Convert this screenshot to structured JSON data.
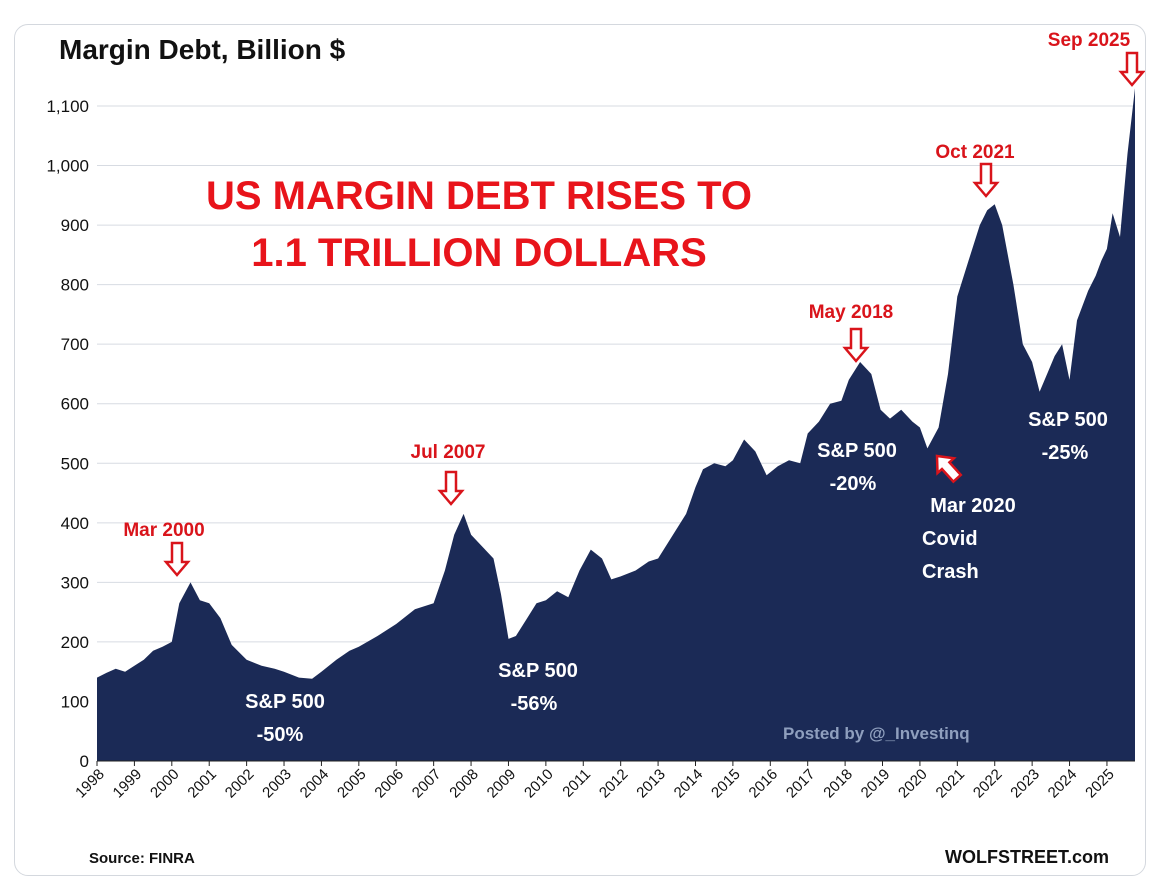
{
  "chart_data": {
    "type": "area",
    "title": "Margin Debt, Billion $",
    "headline": [
      "US MARGIN DEBT RISES TO",
      "1.1 TRILLION DOLLARS"
    ],
    "xlabel": "",
    "ylabel": "",
    "ylim": [
      0,
      1160
    ],
    "xlim": [
      1998,
      2025.75
    ],
    "yticks": [
      0,
      100,
      200,
      300,
      400,
      500,
      600,
      700,
      800,
      900,
      1000,
      1100
    ],
    "ytick_labels": [
      "0",
      "100",
      "200",
      "300",
      "400",
      "500",
      "600",
      "700",
      "800",
      "900",
      "1,000",
      "1,100"
    ],
    "xtick_labels": [
      "1998",
      "1999",
      "2000",
      "2001",
      "2002",
      "2003",
      "2004",
      "2005",
      "2006",
      "2007",
      "2008",
      "2009",
      "2010",
      "2011",
      "2012",
      "2013",
      "2014",
      "2015",
      "2016",
      "2017",
      "2018",
      "2019",
      "2020",
      "2021",
      "2022",
      "2023",
      "2024",
      "2025"
    ],
    "grid": true,
    "fill_color": "#1b2a56",
    "annotation_color": "#d9141b",
    "series": [
      {
        "x": [
          1998.0,
          1998.25,
          1998.5,
          1998.75,
          1999.0,
          1999.25,
          1999.5,
          1999.75,
          2000.0,
          2000.2,
          2000.5,
          2000.75,
          2001.0,
          2001.3,
          2001.6,
          2002.0,
          2002.4,
          2002.75,
          2003.0,
          2003.4,
          2003.75,
          2004.0,
          2004.4,
          2004.75,
          2005.0,
          2005.5,
          2006.0,
          2006.5,
          2007.0,
          2007.3,
          2007.55,
          2007.8,
          2008.0,
          2008.3,
          2008.6,
          2008.8,
          2009.0,
          2009.2,
          2009.5,
          2009.75,
          2010.0,
          2010.3,
          2010.6,
          2010.9,
          2011.2,
          2011.5,
          2011.75,
          2012.0,
          2012.4,
          2012.75,
          2013.0,
          2013.4,
          2013.75,
          2014.0,
          2014.2,
          2014.5,
          2014.8,
          2015.0,
          2015.3,
          2015.6,
          2015.9,
          2016.2,
          2016.5,
          2016.8,
          2017.0,
          2017.3,
          2017.6,
          2017.9,
          2018.1,
          2018.4,
          2018.7,
          2018.95,
          2019.2,
          2019.5,
          2019.8,
          2020.0,
          2020.2,
          2020.5,
          2020.75,
          2021.0,
          2021.3,
          2021.6,
          2021.8,
          2022.0,
          2022.2,
          2022.5,
          2022.75,
          2023.0,
          2023.2,
          2023.4,
          2023.6,
          2023.8,
          2024.0,
          2024.2,
          2024.5,
          2024.7,
          2024.85,
          2025.0,
          2025.15,
          2025.35,
          2025.55,
          2025.75
        ],
        "y": [
          140,
          148,
          155,
          150,
          160,
          170,
          185,
          192,
          200,
          265,
          300,
          270,
          265,
          240,
          195,
          170,
          160,
          155,
          150,
          140,
          138,
          150,
          170,
          185,
          192,
          210,
          230,
          255,
          265,
          320,
          380,
          415,
          380,
          360,
          340,
          280,
          205,
          210,
          240,
          265,
          270,
          285,
          275,
          320,
          355,
          340,
          305,
          310,
          320,
          335,
          340,
          380,
          415,
          460,
          490,
          500,
          495,
          505,
          540,
          520,
          480,
          495,
          505,
          500,
          550,
          570,
          600,
          605,
          640,
          670,
          650,
          590,
          575,
          590,
          570,
          560,
          525,
          560,
          650,
          780,
          840,
          900,
          925,
          935,
          900,
          800,
          700,
          670,
          620,
          650,
          680,
          700,
          640,
          740,
          790,
          815,
          840,
          860,
          920,
          880,
          1020,
          1130
        ]
      }
    ],
    "annotations": {
      "peak_2000": "Mar 2000",
      "peak_2007": "Jul 2007",
      "peak_2018": "May 2018",
      "peak_2021": "Oct 2021",
      "peak_2025": "Sep 2025",
      "sp_2002": [
        "S&P 500",
        "-50%"
      ],
      "sp_2009": [
        "S&P 500",
        "-56%"
      ],
      "sp_2018": [
        "S&P 500",
        "-20%"
      ],
      "covid": [
        "Mar 2020",
        "Covid",
        "Crash"
      ],
      "sp_2022": [
        "S&P 500",
        "-25%"
      ]
    },
    "posted_by": "Posted by @_Investinq",
    "source": "Source: FINRA",
    "brand": "WOLFSTREET.com"
  }
}
